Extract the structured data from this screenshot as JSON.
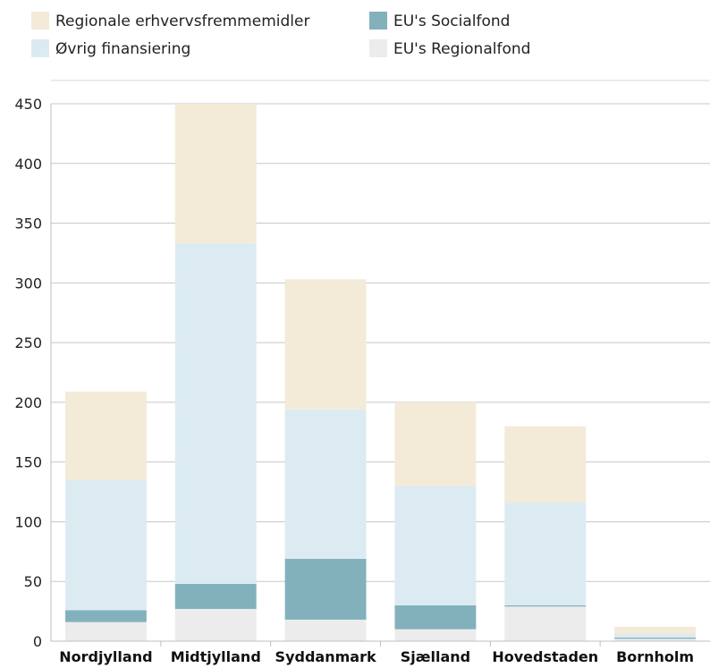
{
  "chart_data": {
    "type": "bar",
    "stacked": true,
    "title": "",
    "xlabel": "",
    "ylabel": "",
    "ylim": [
      0,
      450
    ],
    "yticks": [
      0,
      50,
      100,
      150,
      200,
      250,
      300,
      350,
      400,
      450
    ],
    "grid": true,
    "legend_position": "top",
    "categories": [
      "Nordjylland",
      "Midtjylland",
      "Syddanmark",
      "Sjælland",
      "Hovedstaden",
      "Bornholm"
    ],
    "series": [
      {
        "name": "EU's Regionalfond",
        "color": "#ececec",
        "values": [
          16,
          27,
          18,
          10,
          29,
          2
        ]
      },
      {
        "name": "EU's Socialfond",
        "color": "#82b1bc",
        "values": [
          10,
          21,
          51,
          20,
          1,
          1
        ]
      },
      {
        "name": "Øvrig finansiering",
        "color": "#dcebf2",
        "values": [
          109,
          285,
          125,
          100,
          86,
          3
        ]
      },
      {
        "name": "Regionale erhvervsfremmemidler",
        "color": "#f3ead8",
        "values": [
          74,
          117,
          109,
          70,
          64,
          6
        ]
      }
    ],
    "legend_order": [
      "Regionale erhvervsfremmemidler",
      "EU's Socialfond",
      "Øvrig finansiering",
      "EU's Regionalfond"
    ]
  }
}
